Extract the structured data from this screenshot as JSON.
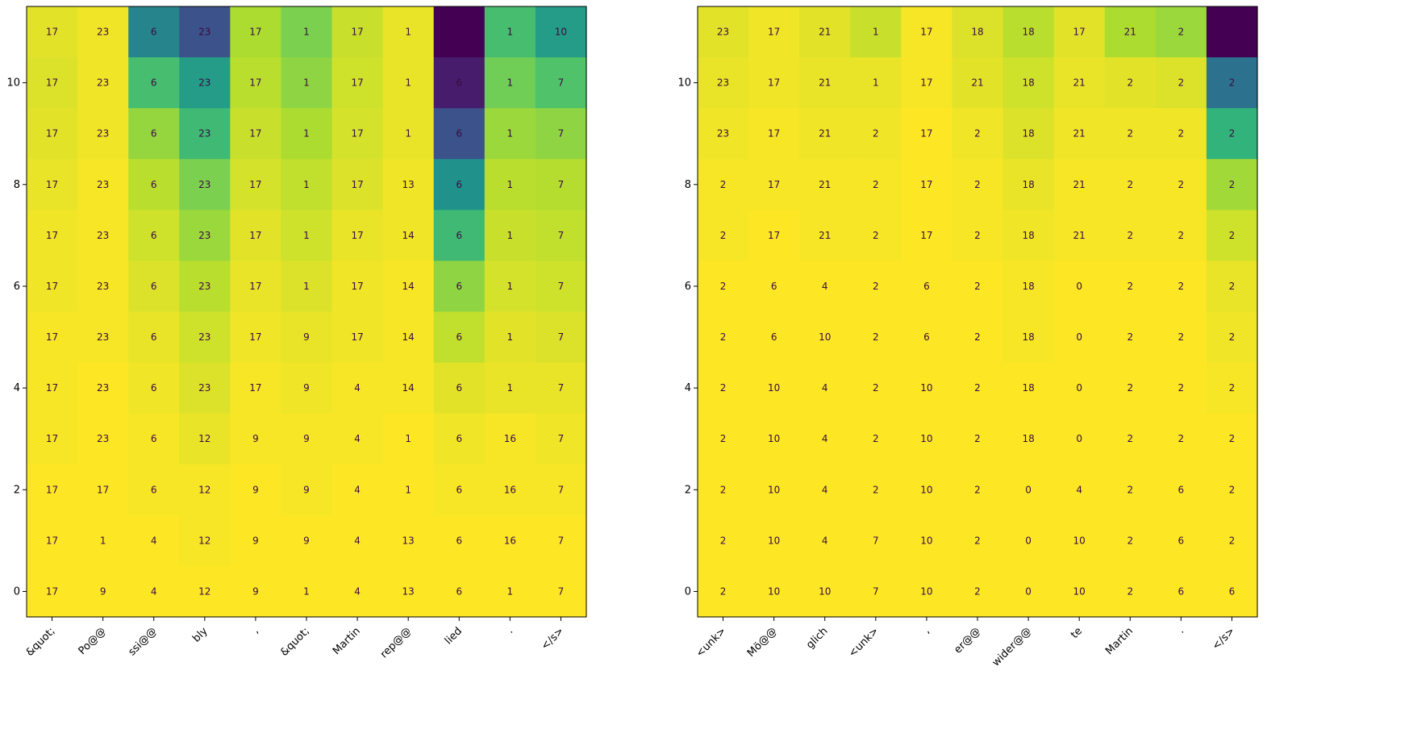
{
  "chart_data": [
    {
      "type": "heatmap",
      "title": "",
      "xlabel": "",
      "ylabel": "",
      "x_tick_labels": [
        "&quot;",
        "Po@@",
        "ssi@@",
        "bly",
        ",",
        "&quot;",
        "Martin",
        "rep@@",
        "lied",
        ".",
        "</s>"
      ],
      "y_ticks": [
        0,
        2,
        4,
        6,
        8,
        10
      ],
      "ylim": [
        -0.5,
        11.5
      ],
      "colormap": "viridis",
      "grid": false,
      "rows_top_to_bottom": [
        [
          17,
          23,
          6,
          23,
          17,
          1,
          17,
          1,
          null,
          1,
          10
        ],
        [
          17,
          23,
          6,
          23,
          17,
          1,
          17,
          1,
          6,
          1,
          7
        ],
        [
          17,
          23,
          6,
          23,
          17,
          1,
          17,
          1,
          6,
          1,
          7
        ],
        [
          17,
          23,
          6,
          23,
          17,
          1,
          17,
          13,
          6,
          1,
          7
        ],
        [
          17,
          23,
          6,
          23,
          17,
          1,
          17,
          14,
          6,
          1,
          7
        ],
        [
          17,
          23,
          6,
          23,
          17,
          1,
          17,
          14,
          6,
          1,
          7
        ],
        [
          17,
          23,
          6,
          23,
          17,
          9,
          17,
          14,
          6,
          1,
          7
        ],
        [
          17,
          23,
          6,
          23,
          17,
          9,
          4,
          14,
          6,
          1,
          7
        ],
        [
          17,
          23,
          6,
          12,
          9,
          9,
          4,
          1,
          6,
          16,
          7
        ],
        [
          17,
          17,
          6,
          12,
          9,
          9,
          4,
          1,
          6,
          16,
          7
        ],
        [
          17,
          1,
          4,
          12,
          9,
          9,
          4,
          13,
          6,
          16,
          7
        ],
        [
          17,
          9,
          4,
          12,
          9,
          1,
          4,
          13,
          6,
          1,
          7
        ]
      ],
      "intensity_top_to_bottom": [
        [
          0.96,
          0.98,
          0.45,
          0.25,
          0.88,
          0.8,
          0.92,
          0.97,
          0.0,
          0.7,
          0.55
        ],
        [
          0.95,
          0.98,
          0.7,
          0.55,
          0.9,
          0.83,
          0.93,
          0.97,
          0.1,
          0.78,
          0.72
        ],
        [
          0.96,
          0.98,
          0.84,
          0.68,
          0.92,
          0.88,
          0.94,
          0.97,
          0.25,
          0.85,
          0.83
        ],
        [
          0.97,
          0.99,
          0.9,
          0.8,
          0.94,
          0.91,
          0.95,
          0.98,
          0.5,
          0.9,
          0.89
        ],
        [
          0.98,
          0.99,
          0.93,
          0.85,
          0.96,
          0.93,
          0.97,
          0.98,
          0.68,
          0.92,
          0.91
        ],
        [
          0.98,
          0.99,
          0.95,
          0.9,
          0.97,
          0.95,
          0.98,
          0.99,
          0.83,
          0.94,
          0.93
        ],
        [
          0.99,
          0.99,
          0.97,
          0.93,
          0.98,
          0.97,
          0.98,
          0.99,
          0.91,
          0.96,
          0.95
        ],
        [
          0.99,
          1.0,
          0.98,
          0.95,
          0.99,
          0.98,
          0.99,
          0.99,
          0.96,
          0.97,
          0.97
        ],
        [
          0.99,
          1.0,
          0.99,
          0.97,
          0.99,
          0.99,
          0.99,
          1.0,
          0.98,
          0.99,
          0.98
        ],
        [
          1.0,
          1.0,
          0.99,
          0.99,
          1.0,
          0.99,
          1.0,
          1.0,
          0.99,
          0.99,
          0.99
        ],
        [
          1.0,
          1.0,
          1.0,
          0.99,
          1.0,
          1.0,
          1.0,
          1.0,
          1.0,
          1.0,
          1.0
        ],
        [
          1.0,
          1.0,
          1.0,
          1.0,
          1.0,
          1.0,
          1.0,
          1.0,
          1.0,
          1.0,
          1.0
        ]
      ]
    },
    {
      "type": "heatmap",
      "title": "",
      "xlabel": "",
      "ylabel": "",
      "x_tick_labels": [
        "<unk>",
        "Mö@@",
        "glich",
        "<unk>",
        ",",
        "er@@",
        "wider@@",
        "te",
        "Martin",
        ".",
        "</s>"
      ],
      "y_ticks": [
        0,
        2,
        4,
        6,
        8,
        10
      ],
      "ylim": [
        -0.5,
        11.5
      ],
      "colormap": "viridis",
      "grid": false,
      "rows_top_to_bottom": [
        [
          23,
          17,
          21,
          1,
          17,
          18,
          18,
          17,
          21,
          2,
          null
        ],
        [
          23,
          17,
          21,
          1,
          17,
          21,
          18,
          21,
          2,
          2,
          2
        ],
        [
          23,
          17,
          21,
          2,
          17,
          2,
          18,
          21,
          2,
          2,
          2
        ],
        [
          2,
          17,
          21,
          2,
          17,
          2,
          18,
          21,
          2,
          2,
          2
        ],
        [
          2,
          17,
          21,
          2,
          17,
          2,
          18,
          21,
          2,
          2,
          2
        ],
        [
          2,
          6,
          4,
          2,
          6,
          2,
          18,
          0,
          2,
          2,
          2
        ],
        [
          2,
          6,
          10,
          2,
          6,
          2,
          18,
          0,
          2,
          2,
          2
        ],
        [
          2,
          10,
          4,
          2,
          10,
          2,
          18,
          0,
          2,
          2,
          2
        ],
        [
          2,
          10,
          4,
          2,
          10,
          2,
          18,
          0,
          2,
          2,
          2
        ],
        [
          2,
          10,
          4,
          2,
          10,
          2,
          0,
          4,
          2,
          6,
          2
        ],
        [
          2,
          10,
          4,
          7,
          10,
          2,
          0,
          10,
          2,
          6,
          2
        ],
        [
          2,
          10,
          10,
          7,
          10,
          2,
          0,
          10,
          2,
          6,
          6
        ]
      ],
      "intensity_top_to_bottom": [
        [
          0.96,
          0.98,
          0.96,
          0.92,
          0.99,
          0.95,
          0.9,
          0.96,
          0.88,
          0.85,
          0.0
        ],
        [
          0.97,
          0.98,
          0.97,
          0.97,
          0.99,
          0.96,
          0.93,
          0.97,
          0.96,
          0.95,
          0.38
        ],
        [
          0.98,
          0.99,
          0.98,
          0.98,
          1.0,
          0.98,
          0.95,
          0.98,
          0.98,
          0.98,
          0.65
        ],
        [
          0.99,
          0.99,
          0.99,
          0.99,
          1.0,
          0.99,
          0.97,
          0.99,
          0.99,
          0.99,
          0.86
        ],
        [
          0.99,
          1.0,
          0.99,
          0.99,
          1.0,
          0.99,
          0.98,
          0.99,
          0.99,
          0.99,
          0.93
        ],
        [
          1.0,
          1.0,
          1.0,
          1.0,
          1.0,
          1.0,
          0.99,
          1.0,
          1.0,
          1.0,
          0.97
        ],
        [
          1.0,
          1.0,
          1.0,
          1.0,
          1.0,
          1.0,
          0.99,
          1.0,
          1.0,
          1.0,
          0.98
        ],
        [
          1.0,
          1.0,
          1.0,
          1.0,
          1.0,
          1.0,
          1.0,
          1.0,
          1.0,
          1.0,
          0.99
        ],
        [
          1.0,
          1.0,
          1.0,
          1.0,
          1.0,
          1.0,
          1.0,
          1.0,
          1.0,
          1.0,
          1.0
        ],
        [
          1.0,
          1.0,
          1.0,
          1.0,
          1.0,
          1.0,
          1.0,
          1.0,
          1.0,
          1.0,
          1.0
        ],
        [
          1.0,
          1.0,
          1.0,
          1.0,
          1.0,
          1.0,
          1.0,
          1.0,
          1.0,
          1.0,
          1.0
        ],
        [
          1.0,
          1.0,
          1.0,
          1.0,
          1.0,
          1.0,
          1.0,
          1.0,
          1.0,
          1.0,
          1.0
        ]
      ]
    }
  ]
}
